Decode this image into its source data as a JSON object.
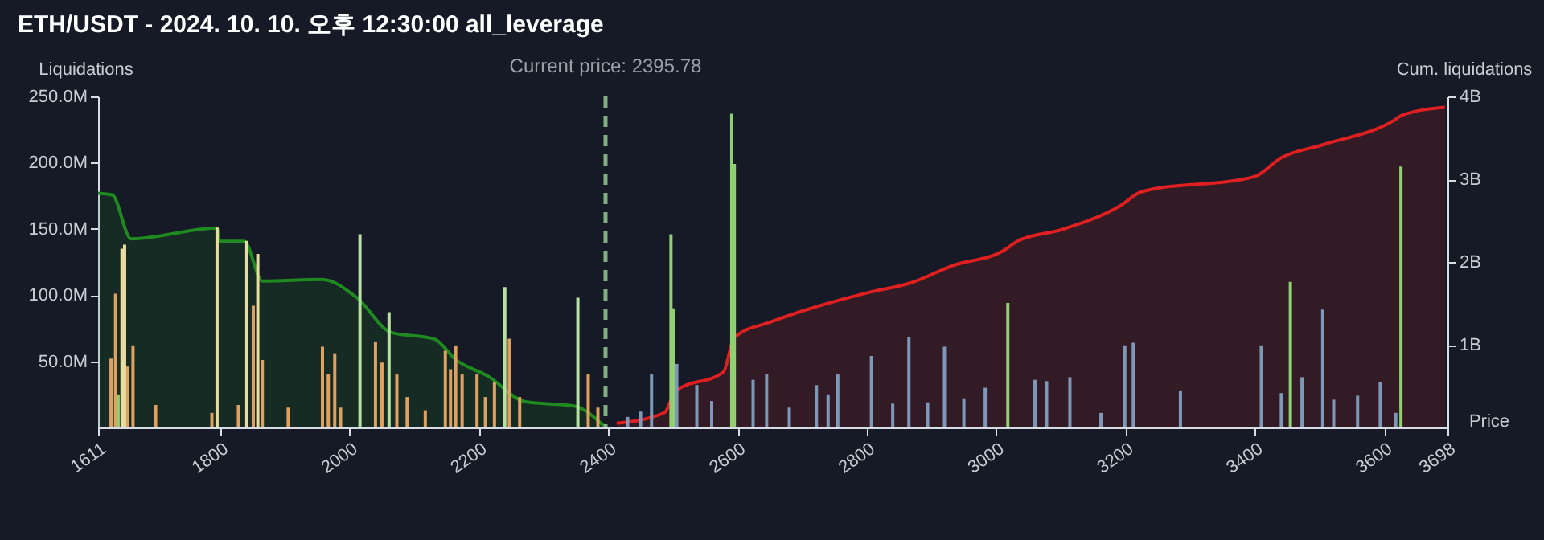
{
  "chart_data": {
    "type": "bar",
    "title": "ETH/USDT - 2024. 10. 10. 오후 12:30:00 all_leverage",
    "xlabel": "Price",
    "ylabel": "Liquidations",
    "y2label": "Cum. liquidations",
    "xlim": [
      1611,
      3698
    ],
    "xticks": [
      1611,
      1800,
      2000,
      2200,
      2400,
      2600,
      2800,
      3000,
      3200,
      3400,
      3600,
      3698
    ],
    "ylim": [
      0,
      250
    ],
    "yticks": [
      {
        "value": 50,
        "label": "50.0M"
      },
      {
        "value": 100,
        "label": "100.0M"
      },
      {
        "value": 150,
        "label": "150.0M"
      },
      {
        "value": 200,
        "label": "200.0M"
      },
      {
        "value": 250,
        "label": "250.0M"
      }
    ],
    "y2lim": [
      0,
      4
    ],
    "y2ticks": [
      {
        "value": 1,
        "label": "1B"
      },
      {
        "value": 2,
        "label": "2B"
      },
      {
        "value": 3,
        "label": "3B"
      },
      {
        "value": 4,
        "label": "4B"
      }
    ],
    "ref_lines": [
      {
        "axis": "x",
        "value": 2395.78,
        "label": "Current price: 2395.78",
        "color": "#7fb07f",
        "line_style": "dashed"
      }
    ],
    "series": [
      {
        "type": "area",
        "axis": "y2",
        "color": "#1f8a1f",
        "x": [
          1611,
          1633,
          1662,
          1795,
          1799,
          1837,
          1865,
          1957,
          2011,
          2064,
          2131,
          2164,
          2214,
          2272,
          2347,
          2393
        ],
        "values": [
          2.83,
          2.81,
          2.28,
          2.41,
          2.25,
          2.25,
          1.77,
          1.79,
          1.57,
          1.15,
          1.07,
          0.82,
          0.62,
          0.31,
          0.26,
          0.02
        ]
      },
      {
        "type": "area",
        "axis": "y2",
        "color": "#e02020",
        "x": [
          2413,
          2487,
          2504,
          2578,
          2595,
          2653,
          2802,
          2869,
          2934,
          3010,
          3035,
          3101,
          3192,
          3225,
          3399,
          3441,
          3507,
          3615,
          3627,
          3694
        ],
        "values": [
          0.05,
          0.18,
          0.44,
          0.67,
          1.09,
          1.28,
          1.63,
          1.75,
          1.96,
          2.13,
          2.26,
          2.39,
          2.68,
          2.85,
          3.03,
          3.26,
          3.42,
          3.71,
          3.77,
          3.87
        ]
      },
      {
        "x": [
          1631,
          1638,
          1642,
          1648,
          1652,
          1657,
          1665,
          1700,
          1787,
          1795,
          1828,
          1841,
          1851,
          1858,
          1865,
          1905,
          1958,
          1967,
          1977,
          1986,
          2016,
          2040,
          2050,
          2061,
          2073,
          2089,
          2117,
          2148,
          2156,
          2164,
          2174,
          2197,
          2210,
          2224,
          2240,
          2247,
          2263,
          2353,
          2369,
          2384,
          2430,
          2450,
          2467,
          2497,
          2501,
          2506,
          2537,
          2560,
          2591,
          2595,
          2624,
          2645,
          2680,
          2722,
          2740,
          2755,
          2807,
          2840,
          2865,
          2894,
          2920,
          2950,
          2983,
          3018,
          3060,
          3078,
          3114,
          3162,
          3199,
          3212,
          3285,
          3410,
          3441,
          3455,
          3473,
          3505,
          3522,
          3559,
          3594,
          3618,
          3626
        ],
        "values": [
          52,
          101,
          25,
          135,
          138,
          46,
          62,
          17,
          11,
          151,
          17,
          141,
          92,
          131,
          51,
          15,
          61,
          40,
          56,
          15,
          146,
          65,
          49,
          87,
          40,
          23,
          13,
          58,
          44,
          62,
          40,
          40,
          23,
          34,
          106,
          67,
          23,
          98,
          40,
          15,
          8,
          12,
          40,
          146,
          90,
          48,
          32,
          20,
          237,
          199,
          36,
          40,
          15,
          32,
          25,
          40,
          54,
          18,
          68,
          19,
          61,
          22,
          30,
          94,
          36,
          35,
          38,
          11,
          62,
          64,
          28,
          62,
          26,
          110,
          38,
          89,
          21,
          24,
          34,
          11,
          197
        ],
        "colors": [
          "#e0a060",
          "#e0a060",
          "#90d070",
          "#e8dca0",
          "#e8dca0",
          "#e0a060",
          "#e0a060",
          "#e0a060",
          "#e0a060",
          "#e8dca0",
          "#e0a060",
          "#e8dca0",
          "#e0a060",
          "#e8dca0",
          "#e0a060",
          "#e0a060",
          "#e0a060",
          "#e0a060",
          "#e0a060",
          "#e0a060",
          "#b8e0a0",
          "#e0a060",
          "#e0a060",
          "#b8e0a0",
          "#e0a060",
          "#e0a060",
          "#e0a060",
          "#e0a060",
          "#e0a060",
          "#e0a060",
          "#e0a060",
          "#e0a060",
          "#e0a060",
          "#e0a060",
          "#b8e0a0",
          "#e0a060",
          "#e0a060",
          "#b8e0a0",
          "#e0a060",
          "#e0a060",
          "#7d98b8",
          "#7d98b8",
          "#7d98b8",
          "#90d070",
          "#90d070",
          "#7d98b8",
          "#7d98b8",
          "#7d98b8",
          "#90d070",
          "#90d070",
          "#7d98b8",
          "#7d98b8",
          "#7d98b8",
          "#7d98b8",
          "#7d98b8",
          "#7d98b8",
          "#7d98b8",
          "#7d98b8",
          "#7d98b8",
          "#7d98b8",
          "#7d98b8",
          "#7d98b8",
          "#7d98b8",
          "#90d070",
          "#7d98b8",
          "#7d98b8",
          "#7d98b8",
          "#7d98b8",
          "#7d98b8",
          "#7d98b8",
          "#7d98b8",
          "#7d98b8",
          "#7d98b8",
          "#90d070",
          "#7d98b8",
          "#7d98b8",
          "#7d98b8",
          "#7d98b8",
          "#7d98b8",
          "#7d98b8",
          "#90d070"
        ]
      }
    ]
  }
}
